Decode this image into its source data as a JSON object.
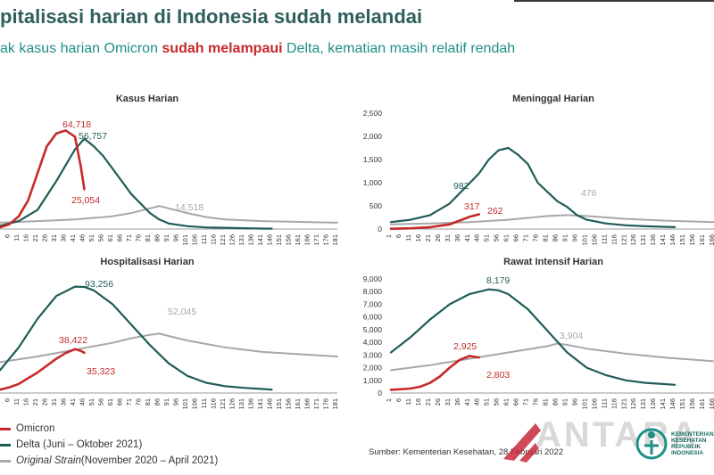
{
  "header": {
    "title": "pitalisasi harian di Indonesia sudah melandai",
    "subtitle_pre": "ak kasus harian Omicron ",
    "subtitle_hl": "sudah melampaui",
    "subtitle_post": " Delta, kematian masih relatif rendah"
  },
  "colors": {
    "omicron": "#c62828",
    "delta": "#1f5c58",
    "delta_raw": "#8fd3d0",
    "omicron_raw": "#f08a8a",
    "original": "#a8a8a8",
    "title": "#2f5f5a"
  },
  "legend": {
    "omicron": "Omicron",
    "delta": "Delta (Juni – Oktober 2021)",
    "original_italic": "Original Strain",
    "original_rest": " (November 2020 – April 2021)"
  },
  "source": "Sumber: Kementerian Kesehatan, 28 Februari 2022",
  "watermark": {
    "brand": "ANTARA",
    "agency": [
      "KEMENTERIAN",
      "KESEHATAN",
      "REPUBLIK",
      "INDONESIA"
    ]
  },
  "chart_data": [
    {
      "type": "line",
      "title": "Kasus Harian",
      "x_ticks": [
        "6",
        "11",
        "16",
        "21",
        "26",
        "31",
        "36",
        "41",
        "46",
        "51",
        "56",
        "61",
        "66",
        "71",
        "76",
        "81",
        "86",
        "91",
        "96",
        "101",
        "106",
        "111",
        "116",
        "121",
        "126",
        "131",
        "136",
        "141",
        "146",
        "151",
        "156",
        "161",
        "166",
        "171",
        "176",
        "181"
      ],
      "xlim": [
        1,
        181
      ],
      "ylim": [
        0,
        70000
      ],
      "y_ticks": [],
      "series": [
        {
          "name": "Omicron",
          "x": [
            1,
            6,
            11,
            16,
            21,
            26,
            31,
            36,
            41,
            44,
            46
          ],
          "values": [
            1000,
            3000,
            8000,
            18000,
            35000,
            52000,
            60000,
            62000,
            58000,
            40000,
            25054
          ]
        },
        {
          "name": "Delta (Juni – Oktober 2021)",
          "x": [
            1,
            11,
            21,
            31,
            41,
            46,
            51,
            56,
            61,
            66,
            71,
            76,
            81,
            86,
            91,
            101,
            111,
            121,
            131,
            141,
            146
          ],
          "values": [
            2000,
            5000,
            12000,
            30000,
            50000,
            56757,
            52000,
            46000,
            38000,
            30000,
            22000,
            16000,
            10000,
            6000,
            3500,
            1800,
            1000,
            800,
            500,
            300,
            200
          ]
        },
        {
          "name": "Original Strain (November 2020 – April 2021)",
          "x": [
            1,
            21,
            41,
            61,
            71,
            81,
            86,
            91,
            101,
            111,
            121,
            141,
            161,
            181
          ],
          "values": [
            4000,
            5000,
            6000,
            8000,
            10000,
            13000,
            14518,
            13000,
            10000,
            7500,
            6000,
            5000,
            4500,
            4000
          ]
        }
      ],
      "labels": [
        "64,718",
        "56,757",
        "25,054",
        "14,518"
      ]
    },
    {
      "type": "line",
      "title": "Meninggal Harian",
      "x_ticks": [
        "1",
        "6",
        "11",
        "16",
        "21",
        "26",
        "31",
        "36",
        "41",
        "46",
        "51",
        "56",
        "61",
        "66",
        "71",
        "76",
        "81",
        "86",
        "91",
        "96",
        "101",
        "106",
        "111",
        "116",
        "121",
        "126",
        "131",
        "136",
        "141",
        "146",
        "151",
        "156",
        "161",
        "166"
      ],
      "xlim": [
        1,
        166
      ],
      "ylim": [
        0,
        2500
      ],
      "y_ticks": [
        "0",
        "500",
        "1,000",
        "1,500",
        "2,000",
        "2,500"
      ],
      "series": [
        {
          "name": "Omicron",
          "x": [
            1,
            11,
            21,
            31,
            36,
            41,
            46
          ],
          "values": [
            5,
            15,
            40,
            100,
            180,
            262,
            317
          ]
        },
        {
          "name": "Delta (Juni – Oktober 2021)",
          "x": [
            1,
            11,
            21,
            31,
            41,
            46,
            51,
            56,
            61,
            66,
            71,
            76,
            81,
            86,
            91,
            96,
            101,
            111,
            121,
            131,
            146
          ],
          "values": [
            150,
            200,
            300,
            550,
            982,
            1200,
            1500,
            1700,
            1750,
            1600,
            1400,
            1000,
            800,
            600,
            476,
            300,
            200,
            120,
            80,
            60,
            40
          ]
        },
        {
          "name": "Original Strain (November 2020 – April 2021)",
          "x": [
            1,
            21,
            41,
            61,
            81,
            91,
            101,
            121,
            141,
            166
          ],
          "values": [
            100,
            120,
            150,
            200,
            280,
            300,
            280,
            220,
            180,
            150
          ]
        }
      ],
      "labels": [
        "982",
        "317",
        "262",
        "476"
      ]
    },
    {
      "type": "line",
      "title": "Hospitalisasi Harian",
      "x_ticks": [
        "6",
        "11",
        "16",
        "21",
        "26",
        "31",
        "36",
        "41",
        "46",
        "51",
        "56",
        "61",
        "66",
        "71",
        "76",
        "81",
        "86",
        "91",
        "96",
        "101",
        "106",
        "111",
        "116",
        "121",
        "126",
        "131",
        "136",
        "141",
        "146",
        "151",
        "156",
        "161",
        "166",
        "171",
        "176",
        "181"
      ],
      "xlim": [
        1,
        181
      ],
      "ylim": [
        0,
        100000
      ],
      "y_ticks": [],
      "series": [
        {
          "name": "Omicron",
          "x": [
            1,
            6,
            11,
            16,
            21,
            26,
            31,
            36,
            41,
            44,
            46
          ],
          "values": [
            3000,
            5000,
            8000,
            13000,
            18000,
            24000,
            30000,
            35000,
            38422,
            37000,
            35323
          ]
        },
        {
          "name": "Delta (Juni – Oktober 2021)",
          "x": [
            1,
            11,
            21,
            31,
            41,
            46,
            51,
            61,
            71,
            81,
            91,
            101,
            111,
            121,
            131,
            141,
            146
          ],
          "values": [
            20000,
            40000,
            65000,
            85000,
            93256,
            93000,
            90000,
            78000,
            60000,
            42000,
            26000,
            15000,
            9000,
            6000,
            4500,
            3500,
            3000
          ]
        },
        {
          "name": "Original Strain (November 2020 – April 2021)",
          "x": [
            1,
            21,
            41,
            61,
            71,
            81,
            86,
            91,
            101,
            121,
            141,
            161,
            181
          ],
          "values": [
            27000,
            32000,
            38000,
            44000,
            48000,
            51000,
            52045,
            50000,
            46000,
            40000,
            36000,
            34000,
            32000
          ]
        }
      ],
      "labels": [
        "93,256",
        "38,422",
        "35,323",
        "52,045"
      ]
    },
    {
      "type": "line",
      "title": "Rawat Intensif Harian",
      "x_ticks": [
        "1",
        "6",
        "11",
        "16",
        "21",
        "26",
        "31",
        "36",
        "41",
        "46",
        "51",
        "56",
        "61",
        "66",
        "71",
        "76",
        "81",
        "86",
        "91",
        "96",
        "101",
        "106",
        "111",
        "116",
        "121",
        "126",
        "131",
        "136",
        "141",
        "146",
        "151",
        "156",
        "161",
        "166"
      ],
      "xlim": [
        1,
        166
      ],
      "ylim": [
        0,
        9000
      ],
      "y_ticks": [
        "0",
        "1,000",
        "2,000",
        "3,000",
        "4,000",
        "5,000",
        "6,000",
        "7,000",
        "8,000",
        "9,000"
      ],
      "series": [
        {
          "name": "Omicron",
          "x": [
            1,
            11,
            16,
            21,
            26,
            31,
            36,
            41,
            46
          ],
          "values": [
            250,
            350,
            500,
            800,
            1300,
            2000,
            2600,
            2925,
            2803
          ]
        },
        {
          "name": "Delta (Juni – Oktober 2021)",
          "x": [
            1,
            11,
            21,
            31,
            41,
            51,
            56,
            61,
            71,
            81,
            91,
            101,
            111,
            121,
            131,
            141,
            146
          ],
          "values": [
            3200,
            4400,
            5800,
            7000,
            7800,
            8179,
            8100,
            7800,
            6600,
            4900,
            3200,
            2000,
            1400,
            1000,
            800,
            700,
            650
          ]
        },
        {
          "name": "Original Strain (November 2020 – April 2021)",
          "x": [
            1,
            21,
            41,
            61,
            81,
            86,
            91,
            101,
            121,
            141,
            166
          ],
          "values": [
            1800,
            2200,
            2700,
            3200,
            3700,
            3904,
            3800,
            3500,
            3100,
            2800,
            2500
          ]
        }
      ],
      "labels": [
        "8,179",
        "2,925",
        "2,803",
        "3,904"
      ]
    }
  ]
}
